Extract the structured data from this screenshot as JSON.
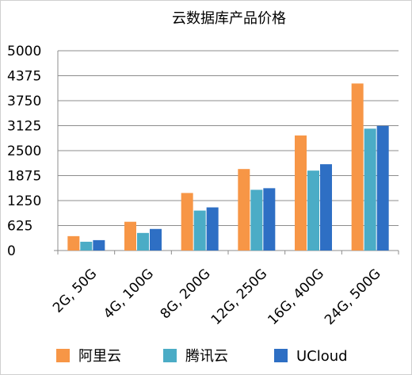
{
  "chart_data": {
    "type": "bar",
    "title": "云数据库产品价格",
    "categories": [
      "2G, 50G",
      "4G, 100G",
      "8G, 200G",
      "12G, 250G",
      "16G, 400G",
      "24G, 500G"
    ],
    "series": [
      {
        "name": "阿里云",
        "color": "#F79646",
        "values": [
          360,
          720,
          1440,
          2040,
          2880,
          4180
        ]
      },
      {
        "name": "腾讯云",
        "color": "#4BACC6",
        "values": [
          220,
          440,
          1000,
          1520,
          2000,
          3050
        ]
      },
      {
        "name": "UCloud",
        "color": "#2E6FC4",
        "values": [
          260,
          540,
          1080,
          1560,
          2160,
          3120
        ]
      }
    ],
    "ylim": [
      0,
      5000
    ],
    "yticks": [
      "0",
      "625",
      "1250",
      "1875",
      "2500",
      "3125",
      "3750",
      "4375",
      "5000"
    ],
    "xlabel": "",
    "ylabel": "",
    "grid": true,
    "legend_position": "bottom"
  }
}
